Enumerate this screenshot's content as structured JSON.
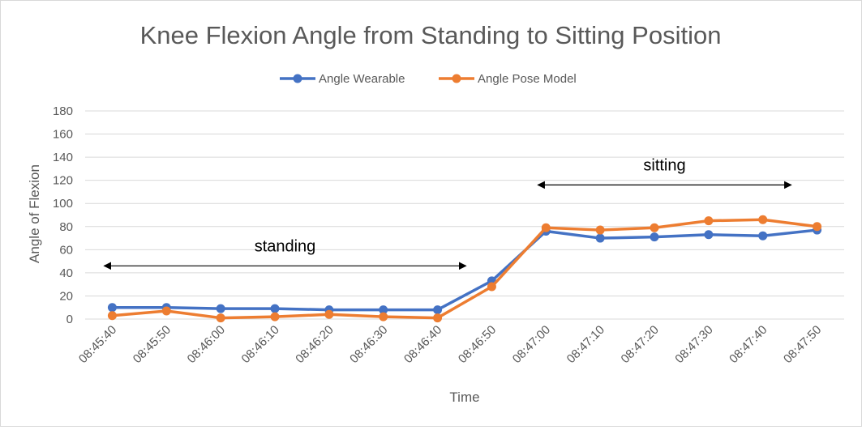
{
  "chart_data": {
    "type": "line",
    "title": "Knee Flexion Angle from Standing to Sitting Position",
    "xlabel": "Time",
    "ylabel": "Angle of Flexion",
    "categories": [
      "08:45:40",
      "08:45:50",
      "08:46:00",
      "08:46:10",
      "08:46:20",
      "08:46:30",
      "08:46:40",
      "08:46:50",
      "08:47:00",
      "08:47:10",
      "08:47:20",
      "08:47:30",
      "08:47:40",
      "08:47:50"
    ],
    "ylim": [
      0,
      180
    ],
    "yticks": [
      0,
      20,
      40,
      60,
      80,
      100,
      120,
      140,
      160,
      180
    ],
    "grid": true,
    "legend_position": "top",
    "series": [
      {
        "name": "Angle Wearable",
        "color": "#4472c4",
        "values": [
          10,
          10,
          9,
          9,
          8,
          8,
          8,
          33,
          76,
          70,
          71,
          73,
          72,
          77
        ]
      },
      {
        "name": "Angle Pose Model",
        "color": "#ed7d31",
        "values": [
          3,
          7,
          1,
          2,
          4,
          2,
          1,
          28,
          79,
          77,
          79,
          85,
          86,
          80
        ]
      }
    ],
    "annotations": [
      {
        "text": "standing",
        "from": "08:45:40",
        "to": "08:46:40",
        "y": 46
      },
      {
        "text": "sitting",
        "from": "08:47:00",
        "to": "08:47:40",
        "y": 116
      }
    ]
  }
}
